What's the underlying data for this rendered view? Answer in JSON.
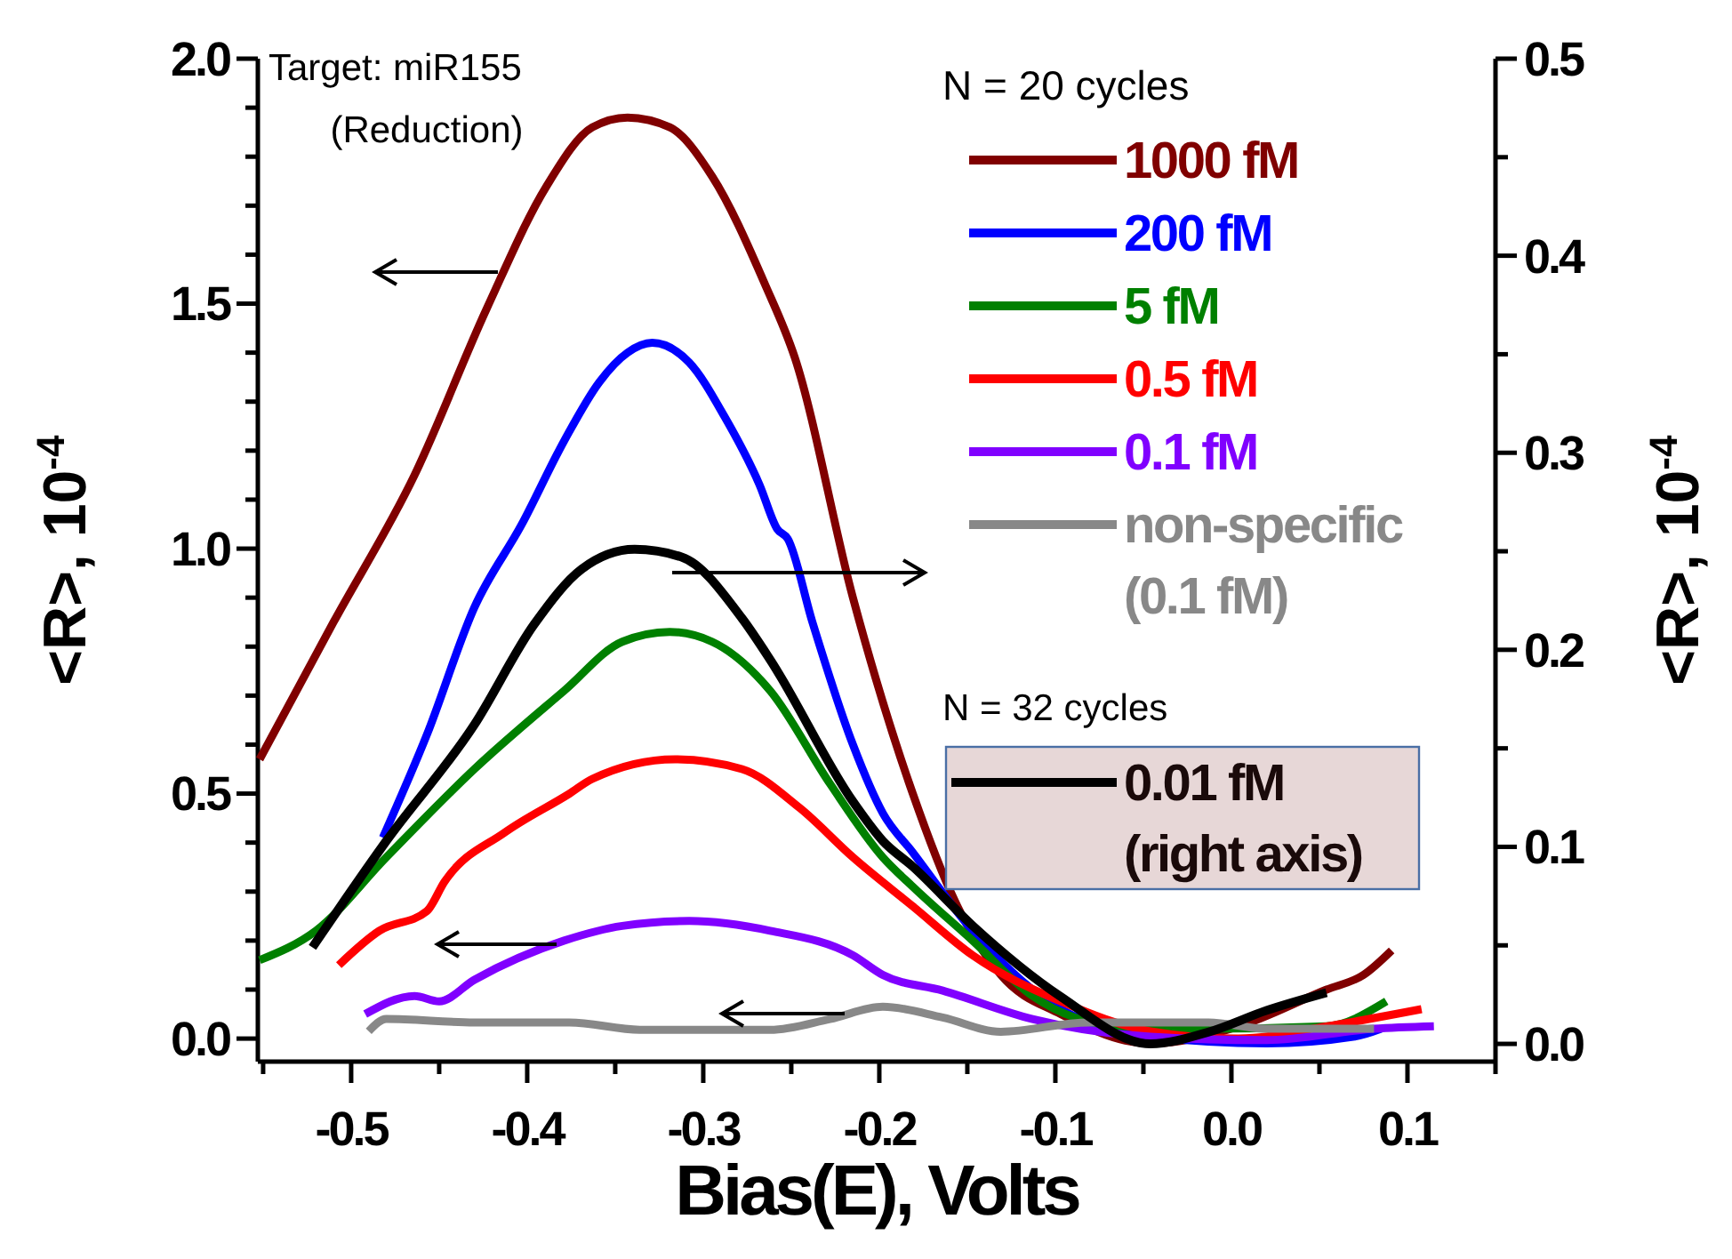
{
  "chart_data": {
    "type": "line",
    "xlabel": "Bias(E), Volts",
    "ylabel": "<R>, 10$^{-4}$",
    "y2label": "<R>, 10$^{-4}$",
    "legend_title": "N = 20 cycles",
    "legend": "top right",
    "marker": "none",
    "line_style": "solid",
    "grid": false,
    "annotations": [
      "Target: miR155",
      "(Reduction)",
      "N = 32 cycles"
    ],
    "xlim": [
      -0.553,
      0.15
    ],
    "xticks": [
      {
        "value": -0.55,
        "label": null
      },
      -0.5,
      {
        "value": -0.45,
        "label": null
      },
      -0.4,
      {
        "value": -0.35,
        "label": null
      },
      -0.3,
      {
        "value": -0.25,
        "label": null
      },
      -0.2,
      {
        "value": -0.15,
        "label": null
      },
      -0.1,
      {
        "value": -0.05,
        "label": null
      },
      {
        "value": 0,
        "label": "0.0"
      },
      {
        "value": 0.05,
        "label": null
      },
      0.1,
      {
        "value": 0.15,
        "label": null
      }
    ],
    "ylim": [
      -0.047,
      2.0
    ],
    "yticks": [
      {
        "value": 0,
        "label": "0.0"
      },
      {
        "value": 0.1,
        "label": null
      },
      {
        "value": 0.2,
        "label": null
      },
      {
        "value": 0.3,
        "label": null
      },
      {
        "value": 0.4,
        "label": null
      },
      0.5,
      {
        "value": 0.6,
        "label": null
      },
      {
        "value": 0.7,
        "label": null
      },
      {
        "value": 0.8,
        "label": null
      },
      {
        "value": 0.9,
        "label": null
      },
      {
        "value": 1,
        "label": "1.0"
      },
      {
        "value": 1.1,
        "label": null
      },
      {
        "value": 1.2,
        "label": null
      },
      {
        "value": 1.3,
        "label": null
      },
      {
        "value": 1.4,
        "label": null
      },
      1.5,
      {
        "value": 1.6,
        "label": null
      },
      {
        "value": 1.7,
        "label": null
      },
      {
        "value": 1.8,
        "label": null
      },
      {
        "value": 1.9,
        "label": null
      },
      {
        "value": 2,
        "label": "2.0"
      }
    ],
    "y2lim": [
      -0.009,
      0.5
    ],
    "y2ticks": [
      {
        "value": 0,
        "label": "0.0"
      },
      {
        "value": 0.05,
        "label": null
      },
      0.1,
      {
        "value": 0.15,
        "label": null
      },
      0.2,
      {
        "value": 0.25,
        "label": null
      },
      0.3,
      {
        "value": 0.35,
        "label": null
      },
      0.4,
      {
        "value": 0.45,
        "label": null
      },
      0.5
    ],
    "series": [
      {
        "name": "1000 fM",
        "color": "#800000",
        "x": [
          -0.552,
          -0.51,
          -0.464,
          -0.423,
          -0.389,
          -0.363,
          -0.343,
          -0.319,
          -0.295,
          -0.265,
          -0.248,
          -0.215,
          -0.181,
          -0.157,
          -0.131,
          -0.097,
          -0.046,
          0.004,
          0.054,
          0.075,
          0.091
        ],
        "values": [
          0.57,
          0.85,
          1.15,
          1.49,
          1.74,
          1.86,
          1.88,
          1.86,
          1.76,
          1.54,
          1.39,
          0.9,
          0.5,
          0.28,
          0.13,
          0.05,
          -0.01,
          0.025,
          0.1,
          0.13,
          0.18
        ]
      },
      {
        "name": "200 fM",
        "color": "#0000ff",
        "x": [
          -0.482,
          -0.457,
          -0.43,
          -0.403,
          -0.379,
          -0.359,
          -0.343,
          -0.329,
          -0.308,
          -0.288,
          -0.268,
          -0.258,
          -0.252,
          -0.238,
          -0.215,
          -0.198,
          -0.181,
          -0.147,
          -0.104,
          -0.046,
          0.02,
          0.07,
          0.085
        ],
        "values": [
          0.41,
          0.62,
          0.88,
          1.05,
          1.22,
          1.34,
          1.4,
          1.42,
          1.38,
          1.27,
          1.13,
          1.04,
          1.02,
          0.85,
          0.6,
          0.46,
          0.38,
          0.22,
          0.076,
          0.004,
          -0.01,
          0.004,
          0.02
        ]
      },
      {
        "name": "5 fM",
        "color": "#008000",
        "x": [
          -0.552,
          -0.52,
          -0.48,
          -0.43,
          -0.379,
          -0.346,
          -0.319,
          -0.295,
          -0.262,
          -0.228,
          -0.198,
          -0.181,
          -0.147,
          -0.113,
          -0.063,
          -0.013,
          0.054,
          0.088
        ],
        "values": [
          0.16,
          0.22,
          0.37,
          0.55,
          0.71,
          0.81,
          0.83,
          0.81,
          0.71,
          0.52,
          0.37,
          0.31,
          0.2,
          0.087,
          0.025,
          0.02,
          0.025,
          0.076
        ]
      },
      {
        "name": "0.5 fM",
        "color": "#ff0000",
        "x": [
          -0.507,
          -0.484,
          -0.457,
          -0.447,
          -0.413,
          -0.376,
          -0.363,
          -0.316,
          -0.278,
          -0.245,
          -0.215,
          -0.181,
          -0.147,
          -0.097,
          -0.046,
          0.004,
          0.054,
          0.108
        ],
        "values": [
          0.15,
          0.22,
          0.26,
          0.32,
          0.42,
          0.5,
          0.53,
          0.57,
          0.55,
          0.47,
          0.37,
          0.27,
          0.17,
          0.076,
          0.015,
          0,
          0.025,
          0.06
        ]
      },
      {
        "name": "0.1 fM",
        "color": "#8000ff",
        "x": [
          -0.492,
          -0.464,
          -0.45,
          -0.43,
          -0.379,
          -0.346,
          -0.308,
          -0.262,
          -0.215,
          -0.198,
          -0.164,
          -0.113,
          -0.046,
          0.02,
          0.081,
          0.115
        ],
        "values": [
          0.05,
          0.087,
          0.076,
          0.12,
          0.2,
          0.23,
          0.24,
          0.22,
          0.17,
          0.13,
          0.098,
          0.04,
          0.004,
          -0.003,
          0.02,
          0.025
        ]
      },
      {
        "name": "non-specific\n(0.1 fM)",
        "color": "#888888",
        "x": [
          -0.49,
          -0.48,
          -0.43,
          -0.376,
          -0.336,
          -0.262,
          -0.228,
          -0.198,
          -0.164,
          -0.131,
          -0.081,
          -0.013,
          0.02,
          0.081
        ],
        "values": [
          0.015,
          0.04,
          0.033,
          0.033,
          0.018,
          0.018,
          0.04,
          0.065,
          0.043,
          0.014,
          0.033,
          0.033,
          0.02,
          0.02
        ]
      },
      {
        "name": "0.01 fM\n(right axis)",
        "color": "#000000",
        "axis": "y2",
        "x": [
          -0.522,
          -0.48,
          -0.43,
          -0.396,
          -0.369,
          -0.339,
          -0.312,
          -0.278,
          -0.262,
          -0.215,
          -0.198,
          -0.181,
          -0.147,
          -0.097,
          -0.046,
          -0.013,
          0.02,
          0.054
        ],
        "values": [
          0.049,
          0.103,
          0.162,
          0.213,
          0.241,
          0.251,
          0.247,
          0.216,
          0.195,
          0.123,
          0.103,
          0.09,
          0.06,
          0.024,
          0,
          0.006,
          0.017,
          0.026
        ]
      }
    ]
  }
}
